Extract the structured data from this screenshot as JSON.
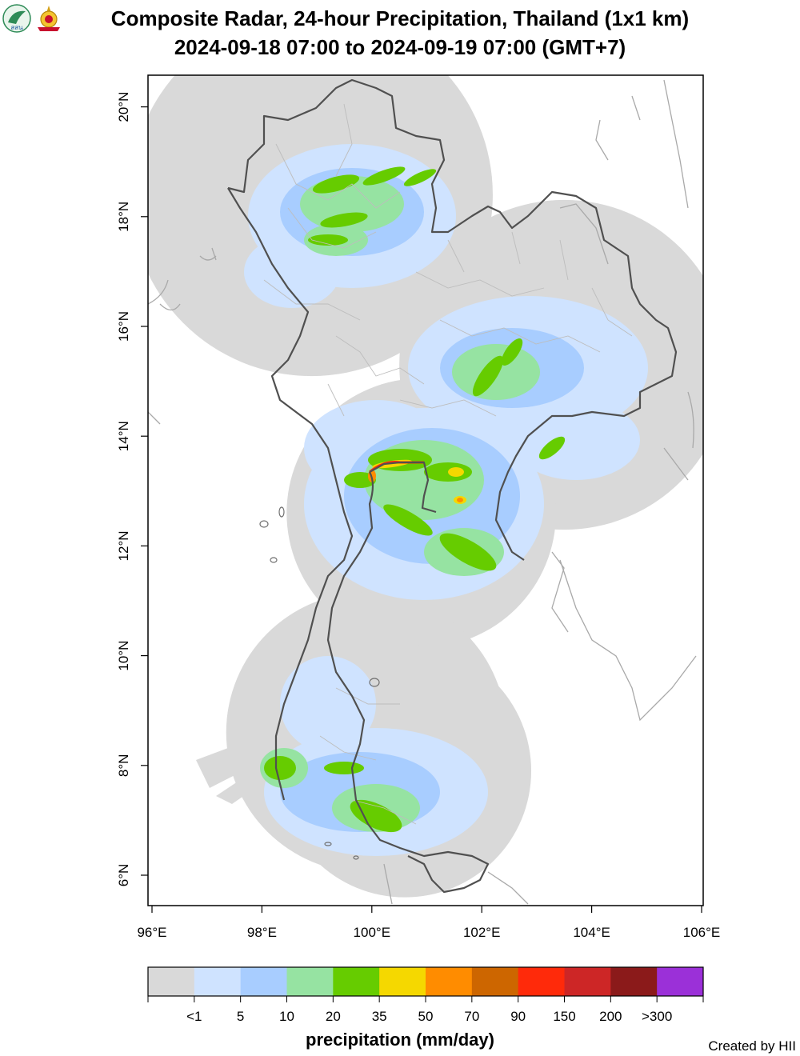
{
  "title_line1": "Composite Radar, 24-hour Precipitation, Thailand (1x1 km)",
  "title_line2": "2024-09-18 07:00 to 2024-09-19 07:00 (GMT+7)",
  "logos": [
    {
      "name": "hii-logo",
      "text": "สสน",
      "color": "#2e8b57"
    },
    {
      "name": "royal-emblem-logo",
      "color": "#c8102e"
    }
  ],
  "map": {
    "lon_range": [
      96,
      106
    ],
    "lat_range": [
      5.5,
      20.6
    ],
    "x_ticks": [
      {
        "value": 96,
        "label": "96°E"
      },
      {
        "value": 98,
        "label": "98°E"
      },
      {
        "value": 100,
        "label": "100°E"
      },
      {
        "value": 102,
        "label": "102°E"
      },
      {
        "value": 104,
        "label": "104°E"
      },
      {
        "value": 106,
        "label": "106°E"
      }
    ],
    "y_ticks": [
      {
        "value": 6,
        "label": "6°N"
      },
      {
        "value": 8,
        "label": "8°N"
      },
      {
        "value": 10,
        "label": "10°N"
      },
      {
        "value": 12,
        "label": "12°N"
      },
      {
        "value": 14,
        "label": "14°N"
      },
      {
        "value": 16,
        "label": "16°N"
      },
      {
        "value": 18,
        "label": "18°N"
      },
      {
        "value": 20,
        "label": "20°N"
      }
    ],
    "radar_coverage": [
      {
        "name": "northern-radar",
        "lon": 98.9,
        "lat": 18.4,
        "radius_deg": 3.3
      },
      {
        "name": "northeastern-radar",
        "lon": 103.5,
        "lat": 15.3,
        "radius_deg": 3.0
      },
      {
        "name": "central-radar",
        "lon": 100.9,
        "lat": 12.6,
        "radius_deg": 2.45
      },
      {
        "name": "upper-south-radar",
        "lon": 99.9,
        "lat": 8.6,
        "radius_deg": 2.55
      },
      {
        "name": "lower-south-radar",
        "lon": 100.6,
        "lat": 7.9,
        "radius_deg": 2.3
      }
    ]
  },
  "colorbar": {
    "title": "precipitation (mm/day)",
    "colors": [
      "#d9d9d9",
      "#cfe3ff",
      "#a8cdff",
      "#96e3a2",
      "#66cc00",
      "#f5d800",
      "#ff8c00",
      "#cd6600",
      "#ff2a0a",
      "#cd2626",
      "#8b1a1a",
      "#9b30d8"
    ],
    "labels": [
      "<1",
      "5",
      "10",
      "20",
      "35",
      "50",
      "70",
      "90",
      "150",
      "200",
      ">300"
    ]
  },
  "credit": "Created by HII"
}
